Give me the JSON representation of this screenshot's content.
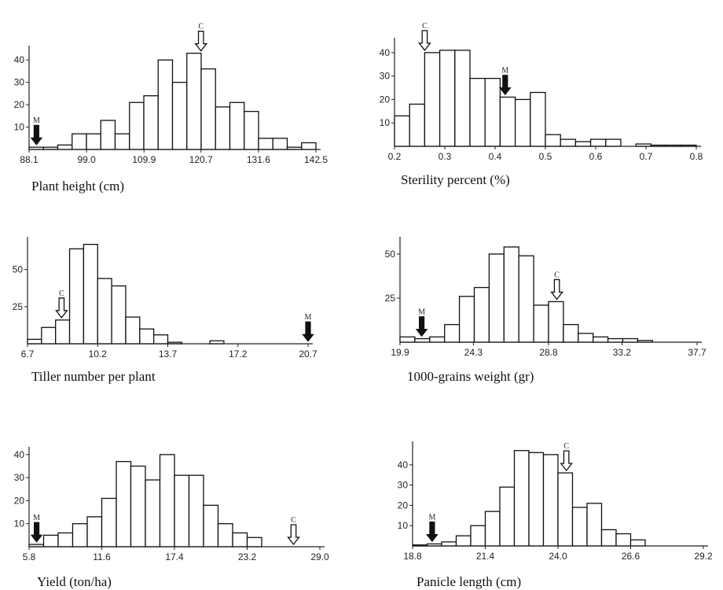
{
  "chart_data": [
    {
      "type": "bar",
      "xlabel": "Plant height (cm)",
      "xticks": [
        "88.1",
        "99.0",
        "109.9",
        "120.7",
        "131.6",
        "142.5"
      ],
      "xlim": [
        88.1,
        142.5
      ],
      "yticks": [
        "10",
        "20",
        "30",
        "40"
      ],
      "ylim": [
        0,
        45
      ],
      "bin_width": 2.72,
      "values": [
        1,
        1,
        2,
        7,
        7,
        13,
        7,
        21,
        24,
        40,
        30,
        43,
        36,
        19,
        21,
        17,
        5,
        5,
        1,
        3
      ],
      "markers": [
        {
          "label": "M",
          "x": 89.5,
          "style": "filled"
        },
        {
          "label": "C",
          "x": 120.7,
          "style": "hollow"
        }
      ]
    },
    {
      "type": "bar",
      "xlabel": "Sterility percent (%)",
      "xticks": [
        "0.2",
        "0.3",
        "0.4",
        "0.5",
        "0.6",
        "0.7",
        "0.8"
      ],
      "xlim": [
        0.2,
        0.8
      ],
      "yticks": [
        "10",
        "20",
        "30",
        "40"
      ],
      "ylim": [
        0,
        45
      ],
      "bin_width": 0.03,
      "values": [
        13,
        18,
        40,
        41,
        41,
        29,
        29,
        21,
        20,
        23,
        5,
        3,
        2,
        3,
        3,
        0,
        1,
        0.5,
        0.5,
        0.5
      ],
      "markers": [
        {
          "label": "C",
          "x": 0.26,
          "style": "hollow"
        },
        {
          "label": "M",
          "x": 0.42,
          "style": "filled"
        }
      ]
    },
    {
      "type": "bar",
      "xlabel": "Tiller number per plant",
      "xticks": [
        "6.7",
        "10.2",
        "13.7",
        "17.2",
        "20.7"
      ],
      "xlim": [
        6.7,
        20.7
      ],
      "yticks": [
        "25",
        "50"
      ],
      "ylim": [
        0,
        70
      ],
      "bin_width": 0.7,
      "values": [
        3,
        11,
        16,
        64,
        67,
        44,
        39,
        18,
        10,
        6,
        1,
        0,
        0,
        2,
        0,
        0,
        0,
        0,
        0,
        0
      ],
      "markers": [
        {
          "label": "C",
          "x": 8.4,
          "style": "hollow"
        },
        {
          "label": "M",
          "x": 20.7,
          "style": "filled"
        }
      ]
    },
    {
      "type": "bar",
      "xlabel": "1000-grains weight (gr)",
      "xticks": [
        "19.9",
        "24.3",
        "28.8",
        "33.2",
        "37.7"
      ],
      "xlim": [
        19.9,
        37.7
      ],
      "yticks": [
        "25",
        "50"
      ],
      "ylim": [
        0,
        58
      ],
      "bin_width": 0.89,
      "values": [
        3,
        2,
        3,
        10,
        26,
        31,
        50,
        54,
        49,
        21,
        23,
        10,
        5,
        3,
        2,
        2,
        1,
        0,
        0,
        0
      ],
      "markers": [
        {
          "label": "M",
          "x": 21.2,
          "style": "filled"
        },
        {
          "label": "C",
          "x": 29.3,
          "style": "hollow"
        }
      ]
    },
    {
      "type": "bar",
      "xlabel": "Yield (ton/ha)",
      "xticks": [
        "5.8",
        "11.6",
        "17.4",
        "23.2",
        "29.0"
      ],
      "xlim": [
        5.8,
        29.0
      ],
      "yticks": [
        "10",
        "20",
        "30",
        "40"
      ],
      "ylim": [
        0,
        42
      ],
      "bin_width": 1.16,
      "values": [
        1,
        5,
        6,
        10,
        13,
        21,
        37,
        35,
        29,
        40,
        31,
        31,
        18,
        10,
        6,
        4,
        0,
        0,
        0,
        0
      ],
      "markers": [
        {
          "label": "M",
          "x": 6.4,
          "style": "filled"
        },
        {
          "label": "C",
          "x": 26.9,
          "style": "hollow"
        }
      ]
    },
    {
      "type": "bar",
      "xlabel": "Panicle length (cm)",
      "xticks": [
        "18.8",
        "21.4",
        "24.0",
        "26.6",
        "29.2"
      ],
      "xlim": [
        18.8,
        29.2
      ],
      "yticks": [
        "10",
        "20",
        "30",
        "40"
      ],
      "ylim": [
        0,
        50
      ],
      "bin_width": 0.52,
      "values": [
        0.5,
        1,
        2,
        5,
        10,
        17,
        29,
        47,
        46,
        45,
        36,
        19,
        21,
        8,
        6,
        3,
        0,
        0,
        0,
        0
      ],
      "markers": [
        {
          "label": "M",
          "x": 19.5,
          "style": "filled"
        },
        {
          "label": "C",
          "x": 24.3,
          "style": "hollow"
        }
      ]
    }
  ]
}
